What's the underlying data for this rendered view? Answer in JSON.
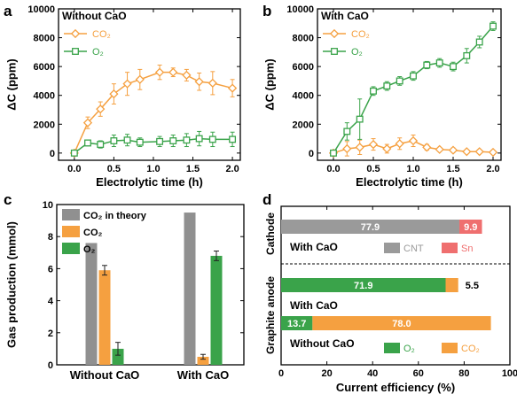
{
  "colors": {
    "co2": "#f5a040",
    "o2": "#3aa34a",
    "theory": "#909090",
    "cnt": "#9a9a9a",
    "sn": "#ef6f6f",
    "axis": "#000000"
  },
  "panels": {
    "a": {
      "letter": "a",
      "title": "Without CaO"
    },
    "b": {
      "letter": "b",
      "title": "With CaO"
    },
    "c": {
      "letter": "c"
    },
    "d": {
      "letter": "d"
    }
  },
  "chart_data": [
    {
      "id": "a",
      "type": "line",
      "title": "Without CaO",
      "xlabel": "Electrolytic time (h)",
      "ylabel": "ΔC (ppm)",
      "xlim": [
        -0.2,
        2.1
      ],
      "ylim": [
        -500,
        10000
      ],
      "xticks": [
        "0.0",
        "0.5",
        "1.0",
        "1.5",
        "2.0"
      ],
      "yticks": [
        "0",
        "2000",
        "4000",
        "6000",
        "8000",
        "10000"
      ],
      "legend": "top-left",
      "x": [
        0,
        0.17,
        0.33,
        0.5,
        0.67,
        0.83,
        1.0,
        1.08,
        1.25,
        1.42,
        1.58,
        1.75,
        2.0
      ],
      "series": [
        {
          "name": "CO₂",
          "marker": "diamond",
          "x": [
            0,
            0.17,
            0.33,
            0.5,
            0.67,
            0.83,
            1.08,
            1.25,
            1.42,
            1.58,
            1.75,
            2.0
          ],
          "values": [
            0,
            2100,
            3050,
            4100,
            4800,
            5100,
            5600,
            5600,
            5400,
            4950,
            4850,
            4500
          ],
          "errors": [
            0,
            400,
            500,
            700,
            800,
            700,
            500,
            300,
            400,
            600,
            800,
            600
          ]
        },
        {
          "name": "O₂",
          "marker": "square",
          "x": [
            0,
            0.17,
            0.33,
            0.5,
            0.67,
            0.83,
            1.08,
            1.25,
            1.42,
            1.58,
            1.75,
            2.0
          ],
          "values": [
            0,
            700,
            600,
            850,
            900,
            750,
            800,
            850,
            900,
            1000,
            950,
            950
          ],
          "errors": [
            0,
            200,
            250,
            400,
            400,
            300,
            350,
            400,
            450,
            500,
            500,
            500
          ]
        }
      ]
    },
    {
      "id": "b",
      "type": "line",
      "title": "With CaO",
      "xlabel": "Electrolytic time (h)",
      "ylabel": "ΔC (ppm)",
      "xlim": [
        -0.2,
        2.1
      ],
      "ylim": [
        -500,
        10000
      ],
      "xticks": [
        "0.0",
        "0.5",
        "1.0",
        "1.5",
        "2.0"
      ],
      "yticks": [
        "0",
        "2000",
        "4000",
        "6000",
        "8000",
        "10000"
      ],
      "legend": "top-left",
      "series": [
        {
          "name": "CO₂",
          "marker": "diamond",
          "x": [
            0,
            0.17,
            0.33,
            0.5,
            0.67,
            0.83,
            1.0,
            1.17,
            1.33,
            1.5,
            1.67,
            1.83,
            2.0
          ],
          "values": [
            0,
            300,
            400,
            600,
            300,
            650,
            850,
            400,
            250,
            200,
            100,
            100,
            50
          ],
          "errors": [
            0,
            500,
            500,
            400,
            300,
            400,
            400,
            200,
            100,
            150,
            100,
            100,
            50
          ]
        },
        {
          "name": "O₂",
          "marker": "square",
          "x": [
            0,
            0.17,
            0.33,
            0.5,
            0.67,
            0.83,
            1.0,
            1.17,
            1.33,
            1.5,
            1.67,
            1.83,
            2.0
          ],
          "values": [
            0,
            1500,
            2350,
            4300,
            4650,
            5000,
            5350,
            6100,
            6250,
            6000,
            6750,
            7700,
            8800
          ],
          "errors": [
            0,
            600,
            1400,
            300,
            300,
            300,
            300,
            250,
            300,
            300,
            500,
            400,
            300
          ]
        }
      ]
    },
    {
      "id": "c",
      "type": "bar",
      "ylabel": "Gas production (mmol)",
      "ylim": [
        0,
        10
      ],
      "yticks": [
        "0",
        "2",
        "4",
        "6",
        "8",
        "10"
      ],
      "categories": [
        "Without CaO",
        "With CaO"
      ],
      "legend": "top-left",
      "series": [
        {
          "name": "CO₂ in theory",
          "values": [
            7.6,
            9.5
          ],
          "errors": [
            0,
            0
          ]
        },
        {
          "name": "CO₂",
          "values": [
            5.9,
            0.5
          ],
          "errors": [
            0.3,
            0.15
          ]
        },
        {
          "name": "O₂",
          "values": [
            1.0,
            6.8
          ],
          "errors": [
            0.4,
            0.3
          ]
        }
      ]
    },
    {
      "id": "d",
      "type": "bar",
      "orientation": "horizontal",
      "xlabel": "Current efficiency (%)",
      "xlim": [
        0,
        100
      ],
      "xticks": [
        "0",
        "20",
        "40",
        "60",
        "80",
        "100"
      ],
      "group_labels": [
        "Cathode",
        "Graphite anode"
      ],
      "rows": [
        {
          "group": "Cathode",
          "label": "With CaO",
          "segments": [
            {
              "name": "CNT",
              "value": 77.9,
              "text": "77.9"
            },
            {
              "name": "Sn",
              "value": 9.9,
              "text": "9.9"
            }
          ]
        },
        {
          "group": "Graphite anode",
          "label": "With CaO",
          "segments": [
            {
              "name": "O₂",
              "value": 71.9,
              "text": "71.9"
            },
            {
              "name": "CO₂",
              "value": 5.5,
              "text": "5.5"
            }
          ]
        },
        {
          "group": "Graphite anode",
          "label": "Without CaO",
          "segments": [
            {
              "name": "O₂",
              "value": 13.7,
              "text": "13.7"
            },
            {
              "name": "CO₂",
              "value": 78.0,
              "text": "78.0"
            }
          ]
        }
      ],
      "legends": [
        {
          "row": 0,
          "items": [
            "CNT",
            "Sn"
          ]
        },
        {
          "row": 2,
          "items": [
            "O₂",
            "CO₂"
          ]
        }
      ]
    }
  ]
}
